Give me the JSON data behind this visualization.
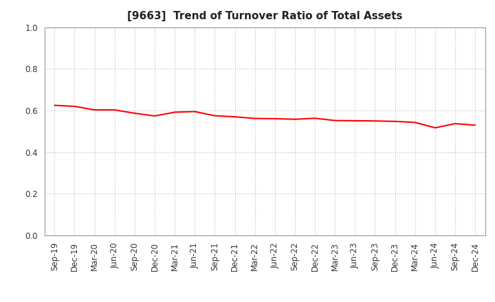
{
  "title": "[9663]  Trend of Turnover Ratio of Total Assets",
  "x_labels": [
    "Sep-19",
    "Dec-19",
    "Mar-20",
    "Jun-20",
    "Sep-20",
    "Dec-20",
    "Mar-21",
    "Jun-21",
    "Sep-21",
    "Dec-21",
    "Mar-22",
    "Jun-22",
    "Sep-22",
    "Dec-22",
    "Mar-23",
    "Jun-23",
    "Sep-23",
    "Dec-23",
    "Mar-24",
    "Jun-24",
    "Sep-24",
    "Dec-24"
  ],
  "y_values": [
    0.625,
    0.62,
    0.603,
    0.603,
    0.587,
    0.574,
    0.592,
    0.595,
    0.575,
    0.57,
    0.562,
    0.561,
    0.558,
    0.563,
    0.552,
    0.551,
    0.55,
    0.548,
    0.543,
    0.517,
    0.537,
    0.53
  ],
  "line_color": "#FF0000",
  "line_width": 1.5,
  "ylim": [
    0.0,
    1.0
  ],
  "yticks": [
    0.0,
    0.2,
    0.4,
    0.6,
    0.8,
    1.0
  ],
  "background_color": "#ffffff",
  "grid_color": "#bbbbbb",
  "title_fontsize": 11,
  "tick_fontsize": 8.5,
  "title_color": "#222222"
}
